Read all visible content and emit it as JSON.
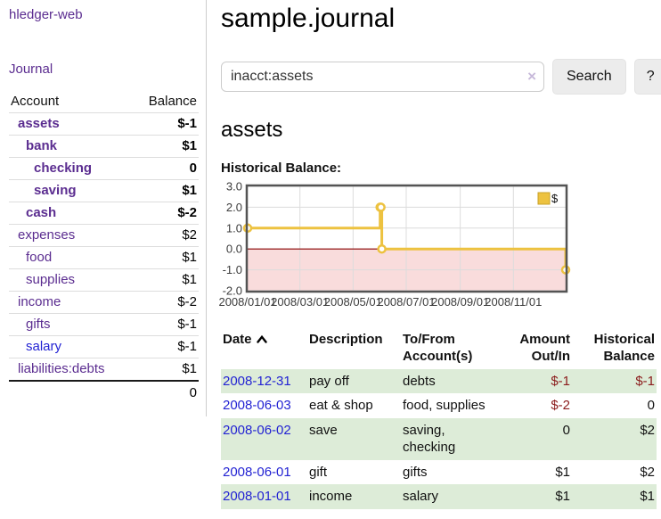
{
  "app": {
    "title": "hledger-web"
  },
  "sidebar": {
    "journal_link": "Journal",
    "accounts_table": {
      "headers": {
        "account": "Account",
        "balance": "Balance"
      },
      "rows": [
        {
          "name": "assets",
          "balance": "$-1"
        },
        {
          "name": "bank",
          "balance": "$1"
        },
        {
          "name": "checking",
          "balance": "0"
        },
        {
          "name": "saving",
          "balance": "$1"
        },
        {
          "name": "cash",
          "balance": "$-2"
        },
        {
          "name": "expenses",
          "balance": "$2"
        },
        {
          "name": "food",
          "balance": "$1"
        },
        {
          "name": "supplies",
          "balance": "$1"
        },
        {
          "name": "income",
          "balance": "$-2"
        },
        {
          "name": "gifts",
          "balance": "$-1"
        },
        {
          "name": "salary",
          "balance": "$-1"
        },
        {
          "name": "liabilities:debts",
          "balance": "$1"
        }
      ],
      "total": "0"
    }
  },
  "main": {
    "title": "sample.journal",
    "search": {
      "value": "inacct:assets",
      "clear_icon": "×",
      "search_button": "Search",
      "help_button": "?"
    },
    "account_heading": "assets",
    "chart_heading": "Historical Balance:",
    "register_table": {
      "headers": {
        "date": "Date",
        "description": "Description",
        "tofrom": "To/From Account(s)",
        "amount": "Amount Out/In",
        "balance": "Historical Balance"
      },
      "rows": [
        {
          "date": "2008-12-31",
          "description": "pay off",
          "accounts": "debts",
          "amount": "$-1",
          "balance": "$-1"
        },
        {
          "date": "2008-06-03",
          "description": "eat & shop",
          "accounts": "food, supplies",
          "amount": "$-2",
          "balance": "0"
        },
        {
          "date": "2008-06-02",
          "description": "save",
          "accounts": "saving,\nchecking",
          "amount": "0",
          "balance": "$2"
        },
        {
          "date": "2008-06-01",
          "description": "gift",
          "accounts": "gifts",
          "amount": "$1",
          "balance": "$2"
        },
        {
          "date": "2008-01-01",
          "description": "income",
          "accounts": "salary",
          "amount": "$1",
          "balance": "$1"
        }
      ]
    }
  },
  "chart_data": {
    "type": "line",
    "title": "Historical Balance:",
    "step": true,
    "x_range": [
      "2008-01-01",
      "2008-12-31"
    ],
    "ylim": [
      -2,
      3
    ],
    "y_ticks": [
      {
        "value": 3,
        "label": "3.0"
      },
      {
        "value": 2,
        "label": "2.0"
      },
      {
        "value": 1,
        "label": "1.0"
      },
      {
        "value": 0,
        "label": "0.0"
      },
      {
        "value": -1,
        "label": "-1.0"
      },
      {
        "value": -2,
        "label": "-2.0"
      }
    ],
    "x_ticks": [
      {
        "date": "2008-01-01",
        "label": "2008/01/01"
      },
      {
        "date": "2008-03-01",
        "label": "2008/03/01"
      },
      {
        "date": "2008-05-01",
        "label": "2008/05/01"
      },
      {
        "date": "2008-07-01",
        "label": "2008/07/01"
      },
      {
        "date": "2008-09-01",
        "label": "2008/09/01"
      },
      {
        "date": "2008-11-01",
        "label": "2008/11/01"
      }
    ],
    "series": [
      {
        "name": "$",
        "color": "#edc240",
        "points": [
          {
            "date": "2008-01-01",
            "value": 1
          },
          {
            "date": "2008-06-01",
            "value": 2
          },
          {
            "date": "2008-06-02",
            "value": 2
          },
          {
            "date": "2008-06-03",
            "value": 0
          },
          {
            "date": "2008-12-31",
            "value": -1
          }
        ]
      }
    ],
    "legend_position": "top-right",
    "grid": true,
    "negative_region_color": "#f9dcdc",
    "zero_line_color": "#8b0000",
    "colors": {
      "series_gold": "#edc240",
      "legend_square_border": "#c9a227",
      "grid": "#dcdcdc",
      "plot_border": "#545454"
    }
  }
}
